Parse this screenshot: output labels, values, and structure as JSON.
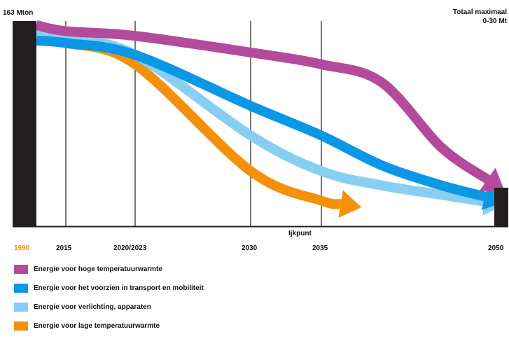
{
  "chart_data": {
    "type": "line",
    "top_left_label": "163 Mton",
    "top_right_label_line1": "Totaal maximaal",
    "top_right_label_line2": "0-30 Mt",
    "start_year_label": "1990",
    "tipping_point_label": "Ijkpunt",
    "x_ticks": [
      "2015",
      "2020/2023",
      "2030",
      "2035",
      "2050"
    ],
    "series": [
      {
        "name": "Energie voor hoge temperatuurwarmte",
        "color": "#b34a9c",
        "x": [
          1990,
          2015,
          2020,
          2030,
          2035,
          2040,
          2045,
          2050
        ],
        "y": [
          163,
          158,
          154,
          140,
          130,
          115,
          60,
          25
        ]
      },
      {
        "name": "Energie voor het voorzien in transport en mobiliteit",
        "color": "#0a97e6",
        "x": [
          1990,
          2015,
          2020,
          2030,
          2035,
          2040,
          2045,
          2050
        ],
        "y": [
          150,
          148,
          138,
          95,
          70,
          45,
          28,
          15
        ]
      },
      {
        "name": "Energie voor verlichting, apparaten",
        "color": "#88cef2",
        "x": [
          1990,
          2015,
          2020,
          2030,
          2035,
          2040,
          2045,
          2050
        ],
        "y": [
          158,
          152,
          138,
          70,
          40,
          28,
          20,
          12
        ]
      },
      {
        "name": "Energie voor lage temperatuurwarmte",
        "color": "#f5900a",
        "x": [
          1990,
          2015,
          2020,
          2030,
          2035,
          2038
        ],
        "y": [
          150,
          148,
          130,
          40,
          15,
          10
        ]
      }
    ]
  }
}
